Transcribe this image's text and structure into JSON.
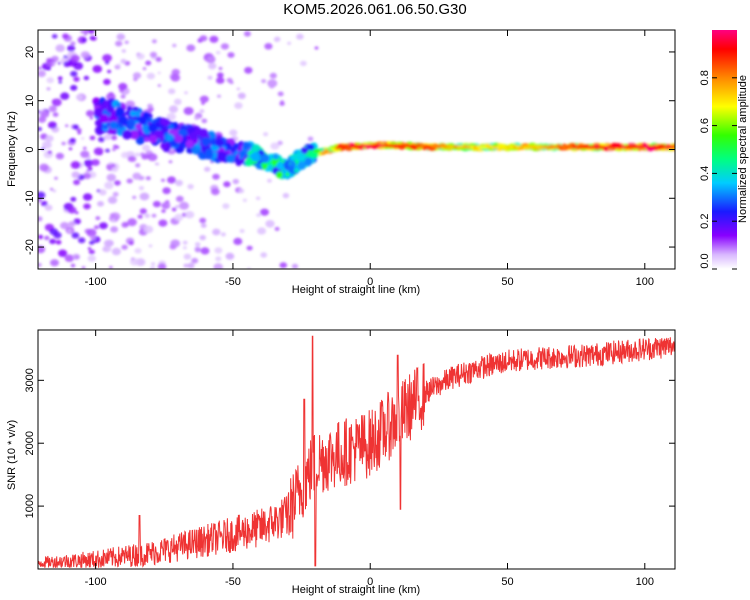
{
  "title": "KOM5.2026.061.06.50.G30",
  "chart_data": [
    {
      "type": "heatmap",
      "xlabel": "Height of straight line (km)",
      "ylabel": "Frequency (Hz)",
      "xlim": [
        -121,
        111
      ],
      "ylim": [
        -24.5,
        24.5
      ],
      "xticks": [
        -100,
        -50,
        0,
        50,
        100
      ],
      "yticks": [
        -20,
        -10,
        0,
        10,
        20
      ],
      "colorbar": {
        "label": "Normalized spectral amplitude",
        "range": [
          0.0,
          1.0
        ],
        "ticks": [
          0.0,
          0.2,
          0.4,
          0.6,
          0.8
        ]
      },
      "ridge": {
        "x": [
          -95,
          -85,
          -75,
          -65,
          -55,
          -45,
          -35,
          -30,
          -25,
          -22,
          -15,
          -10,
          0,
          10,
          20,
          40,
          60,
          80,
          100,
          111
        ],
        "freq": [
          7,
          5,
          3,
          2,
          0,
          -1,
          -3,
          -4,
          -2,
          -1,
          0,
          0.5,
          0.8,
          0.8,
          0.6,
          0.5,
          0.5,
          0.5,
          0.5,
          0.5
        ],
        "amplitude": [
          0.3,
          0.3,
          0.35,
          0.4,
          0.45,
          0.45,
          0.5,
          0.55,
          0.6,
          0.7,
          0.8,
          0.9,
          0.95,
          0.9,
          0.85,
          0.7,
          0.75,
          0.9,
          0.95,
          0.9
        ]
      }
    },
    {
      "type": "line",
      "xlabel": "Height of straight line (km)",
      "ylabel": "SNR (10 * v/v)",
      "xlim": [
        -121,
        111
      ],
      "ylim": [
        0,
        3800
      ],
      "xticks": [
        -100,
        -50,
        0,
        50,
        100
      ],
      "yticks": [
        1000,
        2000,
        3000
      ],
      "color": "#ef3333",
      "trend": {
        "x": [
          -121,
          -100,
          -80,
          -60,
          -40,
          -30,
          -25,
          -20,
          -10,
          0,
          10,
          20,
          30,
          40,
          50,
          60,
          80,
          100,
          111
        ],
        "y": [
          100,
          150,
          250,
          450,
          650,
          850,
          1300,
          1700,
          1850,
          2000,
          2400,
          2800,
          3050,
          3200,
          3300,
          3350,
          3400,
          3500,
          3550
        ]
      },
      "spikes": [
        {
          "x": -84,
          "y": 850
        },
        {
          "x": -24,
          "y": 2700
        },
        {
          "x": -21,
          "y": 3700
        },
        {
          "x": -20,
          "y": 50
        },
        {
          "x": 10,
          "y": 3400
        },
        {
          "x": 11,
          "y": 950
        }
      ]
    }
  ]
}
